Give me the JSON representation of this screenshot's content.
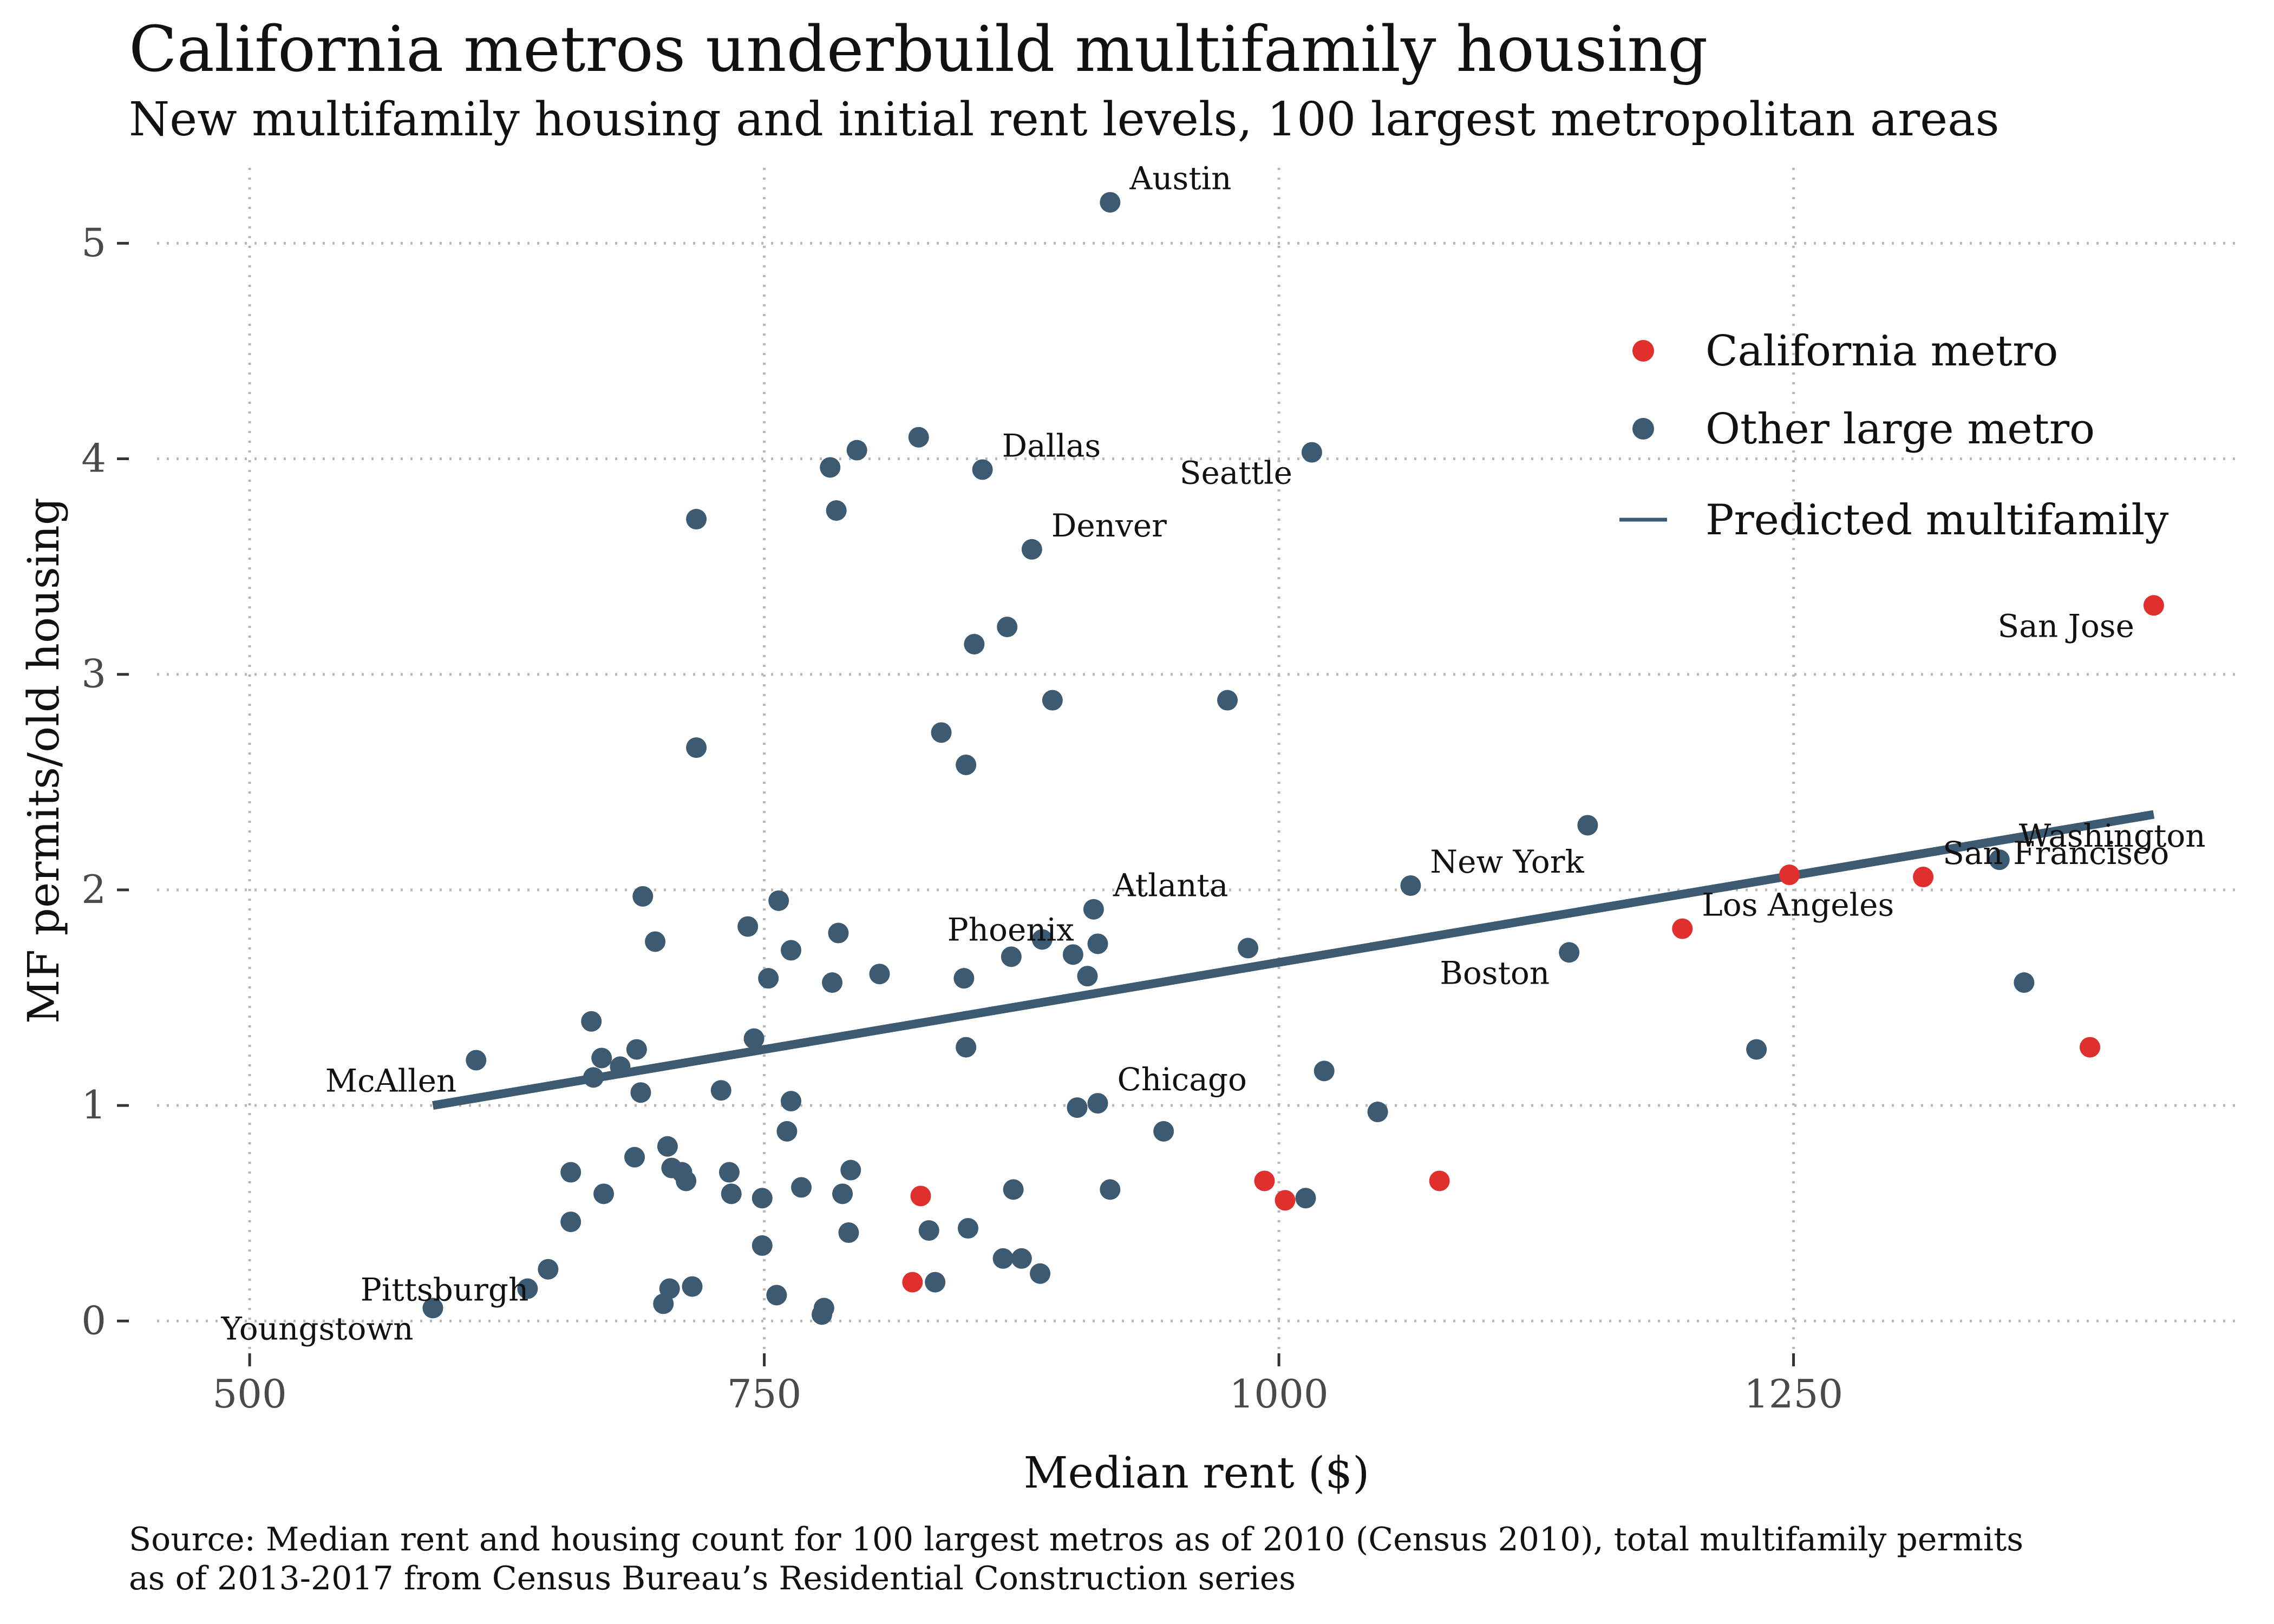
{
  "title": "California metros underbuild multifamily housing",
  "subtitle": "New multifamily housing and initial rent levels, 100 largest metropolitan areas",
  "caption": {
    "line1": "Source: Median rent and housing count for 100 largest metros as of 2010 (Census 2010), total multifamily permits",
    "line2": "as of 2013-2017 from Census Bureau’s Residential Construction series"
  },
  "colors": {
    "california": "#e0302d",
    "other": "#3d5a73",
    "line": "#3d5a73",
    "grid": "#b8b8b8"
  },
  "chart_data": {
    "type": "scatter",
    "xlabel": "Median rent ($)",
    "ylabel": "MF permits/old housing",
    "xlim": [
      455,
      1465
    ],
    "ylim": [
      -0.15,
      5.35
    ],
    "xticks": [
      500,
      750,
      1000,
      1250
    ],
    "yticks": [
      0,
      1,
      2,
      3,
      4,
      5
    ],
    "grid": true,
    "legend_position": "top-right",
    "legend": [
      "California metro",
      "Other large metro",
      "Predicted multifamily"
    ],
    "series": [
      {
        "name": "California metro",
        "points": [
          [
            1425,
            3.32
          ],
          [
            1313,
            2.06
          ],
          [
            1248,
            2.07
          ],
          [
            1196,
            1.82
          ],
          [
            1394,
            1.27
          ],
          [
            1078,
            0.65
          ],
          [
            993,
            0.65
          ],
          [
            1003,
            0.56
          ],
          [
            826,
            0.58
          ],
          [
            822,
            0.18
          ]
        ]
      },
      {
        "name": "Other large metro",
        "points": [
          [
            918,
            5.19
          ],
          [
            825,
            4.1
          ],
          [
            795,
            4.04
          ],
          [
            782,
            3.96
          ],
          [
            856,
            3.95
          ],
          [
            1016,
            4.03
          ],
          [
            785,
            3.76
          ],
          [
            717,
            3.72
          ],
          [
            880,
            3.58
          ],
          [
            868,
            3.22
          ],
          [
            852,
            3.14
          ],
          [
            890,
            2.88
          ],
          [
            975,
            2.88
          ],
          [
            836,
            2.73
          ],
          [
            848,
            2.58
          ],
          [
            717,
            2.66
          ],
          [
            1150,
            2.3
          ],
          [
            1064,
            2.02
          ],
          [
            1350,
            2.14
          ],
          [
            691,
            1.97
          ],
          [
            757,
            1.95
          ],
          [
            910,
            1.91
          ],
          [
            742,
            1.83
          ],
          [
            786,
            1.8
          ],
          [
            697,
            1.76
          ],
          [
            763,
            1.72
          ],
          [
            885,
            1.77
          ],
          [
            912,
            1.75
          ],
          [
            985,
            1.73
          ],
          [
            870,
            1.69
          ],
          [
            900,
            1.7
          ],
          [
            1141,
            1.71
          ],
          [
            752,
            1.59
          ],
          [
            783,
            1.57
          ],
          [
            806,
            1.61
          ],
          [
            847,
            1.59
          ],
          [
            907,
            1.6
          ],
          [
            1362,
            1.57
          ],
          [
            666,
            1.39
          ],
          [
            745,
            1.31
          ],
          [
            688,
            1.26
          ],
          [
            848,
            1.27
          ],
          [
            1232,
            1.26
          ],
          [
            610,
            1.21
          ],
          [
            671,
            1.22
          ],
          [
            680,
            1.18
          ],
          [
            667,
            1.13
          ],
          [
            729,
            1.07
          ],
          [
            690,
            1.06
          ],
          [
            763,
            1.02
          ],
          [
            1022,
            1.16
          ],
          [
            902,
            0.99
          ],
          [
            912,
            1.01
          ],
          [
            1048,
            0.97
          ],
          [
            761,
            0.88
          ],
          [
            944,
            0.88
          ],
          [
            703,
            0.81
          ],
          [
            687,
            0.76
          ],
          [
            656,
            0.69
          ],
          [
            705,
            0.71
          ],
          [
            710,
            0.69
          ],
          [
            733,
            0.69
          ],
          [
            792,
            0.7
          ],
          [
            712,
            0.65
          ],
          [
            672,
            0.59
          ],
          [
            734,
            0.59
          ],
          [
            749,
            0.57
          ],
          [
            768,
            0.62
          ],
          [
            788,
            0.59
          ],
          [
            871,
            0.61
          ],
          [
            918,
            0.61
          ],
          [
            1013,
            0.57
          ],
          [
            656,
            0.46
          ],
          [
            791,
            0.41
          ],
          [
            830,
            0.42
          ],
          [
            849,
            0.43
          ],
          [
            749,
            0.35
          ],
          [
            866,
            0.29
          ],
          [
            875,
            0.29
          ],
          [
            645,
            0.24
          ],
          [
            635,
            0.15
          ],
          [
            884,
            0.22
          ],
          [
            704,
            0.15
          ],
          [
            715,
            0.16
          ],
          [
            833,
            0.18
          ],
          [
            756,
            0.12
          ],
          [
            589,
            0.06
          ],
          [
            701,
            0.08
          ],
          [
            779,
            0.06
          ],
          [
            778,
            0.03
          ]
        ]
      }
    ],
    "trend_line": {
      "name": "Predicted multifamily",
      "from": [
        589,
        1.0
      ],
      "to": [
        1425,
        2.35
      ]
    },
    "annotations": [
      {
        "text": "Austin",
        "x": 918,
        "y": 5.19,
        "pos": "right"
      },
      {
        "text": "Dallas",
        "x": 856,
        "y": 3.95,
        "pos": "right"
      },
      {
        "text": "Seattle",
        "x": 1016,
        "y": 4.03,
        "pos": "left"
      },
      {
        "text": "Denver",
        "x": 880,
        "y": 3.58,
        "pos": "right"
      },
      {
        "text": "San Jose",
        "x": 1425,
        "y": 3.32,
        "pos": "left"
      },
      {
        "text": "Washington",
        "x": 1350,
        "y": 2.14,
        "pos": "right"
      },
      {
        "text": "New York",
        "x": 1064,
        "y": 2.02,
        "pos": "right"
      },
      {
        "text": "Los Angeles",
        "x": 1196,
        "y": 1.82,
        "pos": "right"
      },
      {
        "text": "San Francisco",
        "x": 1313,
        "y": 2.06,
        "pos": "right"
      },
      {
        "text": "Atlanta",
        "x": 910,
        "y": 1.91,
        "pos": "right"
      },
      {
        "text": "Phoenix",
        "x": 910,
        "y": 1.91,
        "pos": "left"
      },
      {
        "text": "Boston",
        "x": 1141,
        "y": 1.71,
        "pos": "left"
      },
      {
        "text": "Chicago",
        "x": 912,
        "y": 1.01,
        "pos": "right"
      },
      {
        "text": "McAllen",
        "x": 610,
        "y": 1.21,
        "pos": "left"
      },
      {
        "text": "Pittsburgh",
        "x": 645,
        "y": 0.24,
        "pos": "left"
      },
      {
        "text": "Youngstown",
        "x": 589,
        "y": 0.06,
        "pos": "left"
      }
    ]
  }
}
